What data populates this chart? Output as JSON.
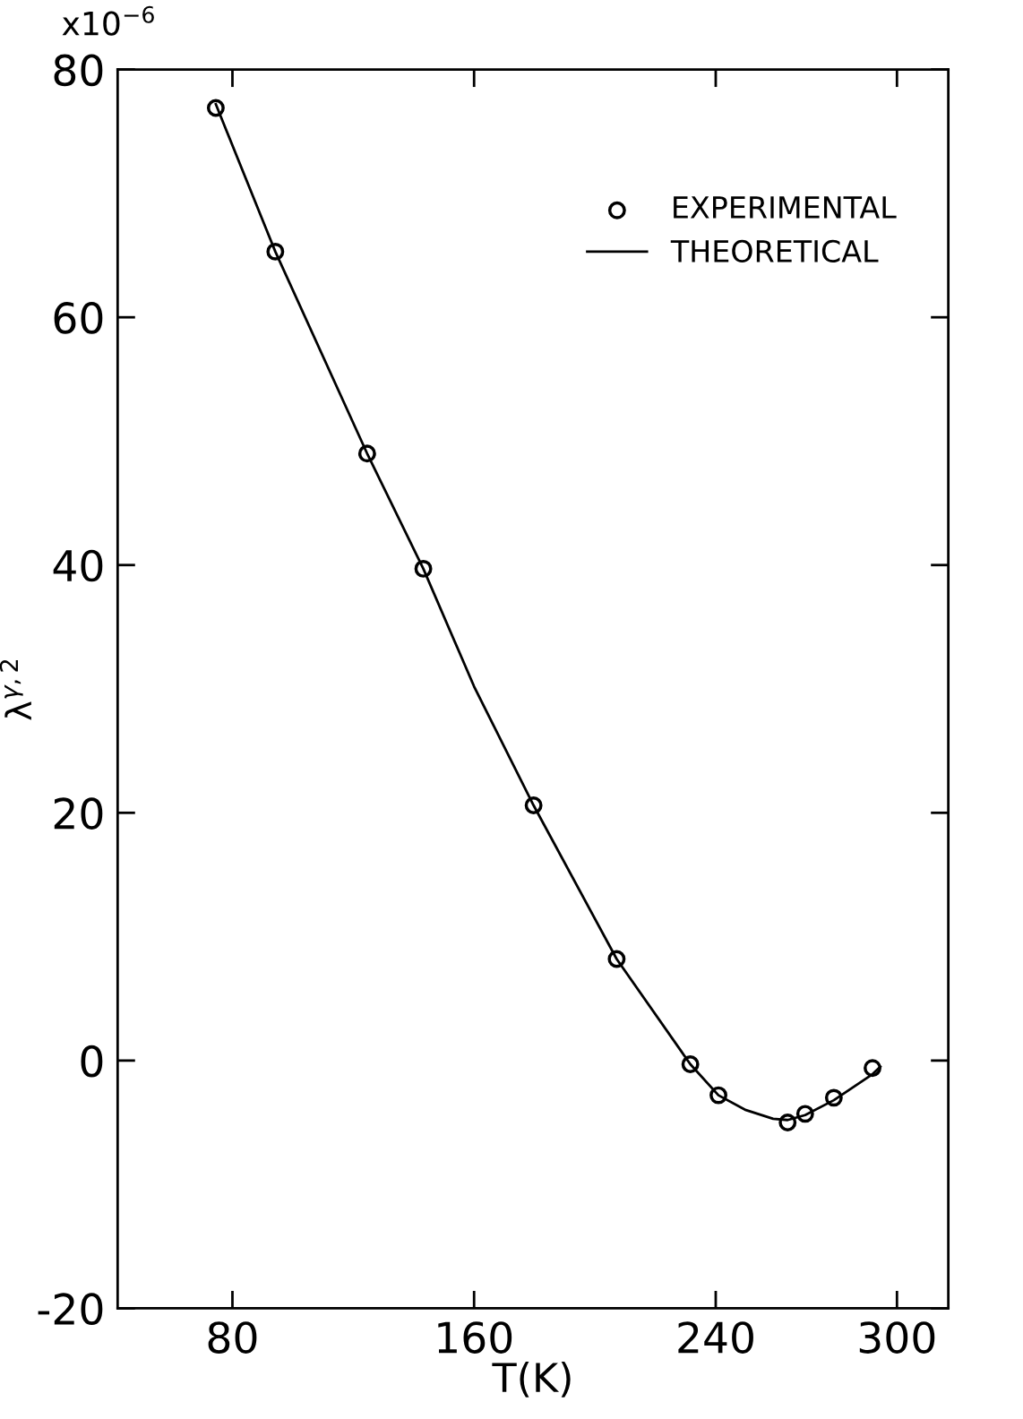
{
  "chart_data": {
    "type": "scatter",
    "xlabel": "T(K)",
    "ylabel": "λ$^{γ,2}$",
    "annotations": [
      "x10$^{−6}$"
    ],
    "xlim": [
      42,
      317
    ],
    "xticks": [
      80,
      160,
      240,
      300
    ],
    "ylim": [
      -20,
      80
    ],
    "yticks": [
      -20,
      0,
      20,
      40,
      60,
      80
    ],
    "grid": false,
    "legend": "top right",
    "series": [
      {
        "name": "EXPERIMENTAL",
        "marker": "circle",
        "color": "#000000",
        "x": [
          74.5,
          94.2,
          124.6,
          143.2,
          179.7,
          207.2,
          231.6,
          240.9,
          263.8,
          269.6,
          279.1,
          291.9
        ],
        "values": [
          76.9,
          65.3,
          49.0,
          39.7,
          20.6,
          8.2,
          -0.3,
          -2.8,
          -5.0,
          -4.3,
          -3.0,
          -0.6
        ]
      },
      {
        "name": "THEORETICAL",
        "type": "line",
        "marker": "none",
        "line_style": "solid",
        "color": "#000000",
        "x": [
          74.5,
          94.2,
          124.6,
          143.2,
          160,
          179.7,
          207.2,
          231.6,
          240.9,
          250,
          259,
          263.8,
          269.6,
          279.1,
          291.9,
          294.5
        ],
        "values": [
          77.2,
          65.3,
          49.0,
          39.7,
          30.2,
          20.6,
          8.2,
          -0.3,
          -2.8,
          -4.0,
          -4.7,
          -4.8,
          -4.4,
          -3.2,
          -1.1,
          -0.5
        ]
      }
    ]
  }
}
